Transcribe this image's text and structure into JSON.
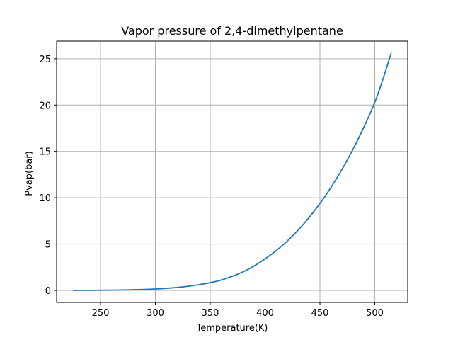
{
  "chart_data": {
    "type": "line",
    "title": "Vapor pressure of 2,4-dimethylpentane",
    "xlabel": "Temperature(K)",
    "ylabel": "Pvap(bar)",
    "xlim": [
      210,
      530
    ],
    "ylim": [
      -1.3,
      26.9
    ],
    "xticks": [
      250,
      300,
      350,
      400,
      450,
      500
    ],
    "yticks": [
      0,
      5,
      10,
      15,
      20,
      25
    ],
    "xtick_labels": [
      "250",
      "300",
      "350",
      "400",
      "450",
      "500"
    ],
    "ytick_labels": [
      "0",
      "5",
      "10",
      "15",
      "20",
      "25"
    ],
    "grid": true,
    "line_color": "#1f77b4",
    "grid_color": "#b0b0b0",
    "series": [
      {
        "x": [
          225,
          240,
          260,
          280,
          300,
          320,
          340,
          360,
          380,
          400,
          420,
          440,
          460,
          480,
          500,
          515
        ],
        "values": [
          0.0,
          0.01,
          0.03,
          0.07,
          0.15,
          0.32,
          0.62,
          1.12,
          2.0,
          3.4,
          5.3,
          7.85,
          11.1,
          15.2,
          20.3,
          25.6
        ]
      }
    ]
  }
}
